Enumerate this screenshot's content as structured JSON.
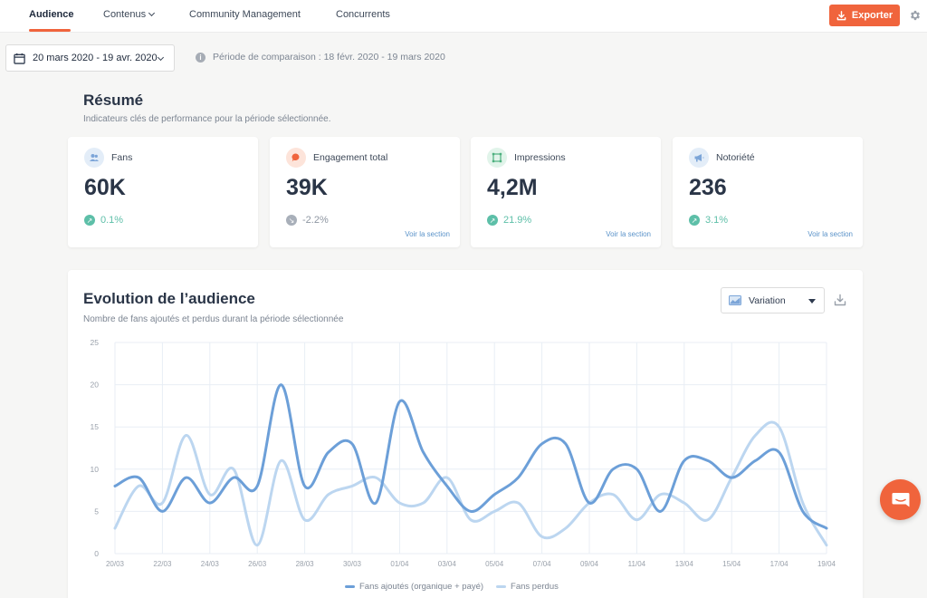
{
  "nav": {
    "tabs": [
      {
        "label": "Audience"
      },
      {
        "label": "Contenus"
      },
      {
        "label": "Community Management"
      },
      {
        "label": "Concurrents"
      }
    ],
    "export_label": "Exporter"
  },
  "date_range": {
    "value": "20 mars 2020 - 19 avr. 2020",
    "comparison": "Période de comparaison : 18 févr. 2020 - 19 mars 2020"
  },
  "summary": {
    "title": "Résumé",
    "subtitle": "Indicateurs clés de performance pour la période sélectionnée.",
    "kpis": [
      {
        "label": "Fans",
        "value": "60K",
        "trend": "0.1%",
        "direction": "up",
        "icon": "users-icon",
        "link": ""
      },
      {
        "label": "Engagement total",
        "value": "39K",
        "trend": "-2.2%",
        "direction": "down",
        "icon": "chat-bubble-icon",
        "link": "Voir la section"
      },
      {
        "label": "Impressions",
        "value": "4,2M",
        "trend": "21.9%",
        "direction": "up",
        "icon": "frame-icon",
        "link": "Voir la section"
      },
      {
        "label": "Notoriété",
        "value": "236",
        "trend": "3.1%",
        "direction": "up",
        "icon": "megaphone-icon",
        "link": "Voir la section"
      }
    ]
  },
  "audience_chart": {
    "title": "Evolution de l’audience",
    "subtitle": "Nombre de fans ajoutés et perdus durant la période sélectionnée",
    "view_select": "Variation"
  },
  "colors": {
    "accent": "#f0643c",
    "trend_up": "#5dbfa8",
    "trend_down": "#a8afb9",
    "series_added": "#6c9fd8",
    "series_lost": "#bcd6f0"
  },
  "chart_data": {
    "type": "line",
    "title": "Evolution de l’audience",
    "xlabel": "",
    "ylabel": "",
    "ylim": [
      0,
      25
    ],
    "yticks": [
      0,
      5,
      10,
      15,
      20,
      25
    ],
    "x_tick_labels": [
      "20/03",
      "22/03",
      "24/03",
      "26/03",
      "28/03",
      "30/03",
      "01/04",
      "03/04",
      "05/04",
      "07/04",
      "09/04",
      "11/04",
      "13/04",
      "15/04",
      "17/04",
      "19/04"
    ],
    "x": [
      "20/03",
      "21/03",
      "22/03",
      "23/03",
      "24/03",
      "25/03",
      "26/03",
      "27/03",
      "28/03",
      "29/03",
      "30/03",
      "31/03",
      "01/04",
      "02/04",
      "03/04",
      "04/04",
      "05/04",
      "06/04",
      "07/04",
      "08/04",
      "09/04",
      "10/04",
      "11/04",
      "12/04",
      "13/04",
      "14/04",
      "15/04",
      "16/04",
      "17/04",
      "18/04",
      "19/04"
    ],
    "grid": true,
    "legend_position": "bottom",
    "series": [
      {
        "name": "Fans ajoutés (organique + payé)",
        "values": [
          8,
          9,
          5,
          9,
          6,
          9,
          8,
          20,
          8,
          12,
          13,
          6,
          18,
          12,
          8,
          5,
          7,
          9,
          13,
          13,
          6,
          10,
          10,
          5,
          11,
          11,
          9,
          11,
          12,
          5,
          3
        ]
      },
      {
        "name": "Fans perdus",
        "values": [
          3,
          8,
          6,
          14,
          7,
          10,
          1,
          11,
          4,
          7,
          8,
          9,
          6,
          6,
          9,
          4,
          5,
          6,
          2,
          3,
          6,
          7,
          4,
          7,
          6,
          4,
          9,
          14,
          15,
          6,
          1
        ]
      }
    ]
  }
}
